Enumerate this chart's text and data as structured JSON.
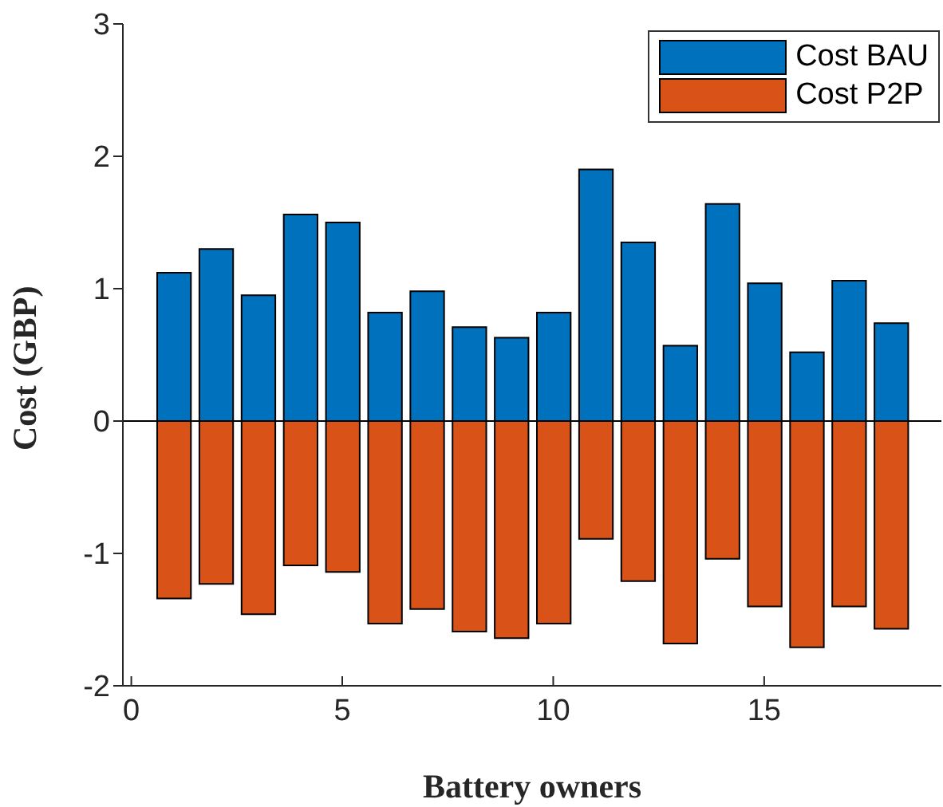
{
  "chart_data": {
    "type": "bar",
    "xlabel": "Battery owners",
    "ylabel": "Cost (GBP)",
    "stacked": true,
    "x": [
      1,
      2,
      3,
      4,
      5,
      6,
      7,
      8,
      9,
      10,
      11,
      12,
      13,
      14,
      15,
      16,
      17,
      18
    ],
    "series": [
      {
        "name": "Cost BAU",
        "color": "#0072bd",
        "values": [
          1.12,
          1.3,
          0.95,
          1.56,
          1.5,
          0.82,
          0.98,
          0.71,
          0.63,
          0.82,
          1.9,
          1.35,
          0.57,
          1.64,
          1.04,
          0.52,
          1.06,
          0.74
        ]
      },
      {
        "name": "Cost P2P",
        "color": "#d95319",
        "values": [
          -1.34,
          -1.23,
          -1.46,
          -1.09,
          -1.14,
          -1.53,
          -1.42,
          -1.59,
          -1.64,
          -1.53,
          -0.89,
          -1.21,
          -1.68,
          -1.04,
          -1.4,
          -1.71,
          -1.4,
          -1.57
        ]
      }
    ],
    "xlim": [
      -0.2,
      19.2
    ],
    "xticks": [
      0,
      5,
      10,
      15
    ],
    "ylim": [
      -2,
      3
    ],
    "yticks": [
      -2,
      -1,
      0,
      1,
      2,
      3
    ],
    "legend": "top right"
  }
}
